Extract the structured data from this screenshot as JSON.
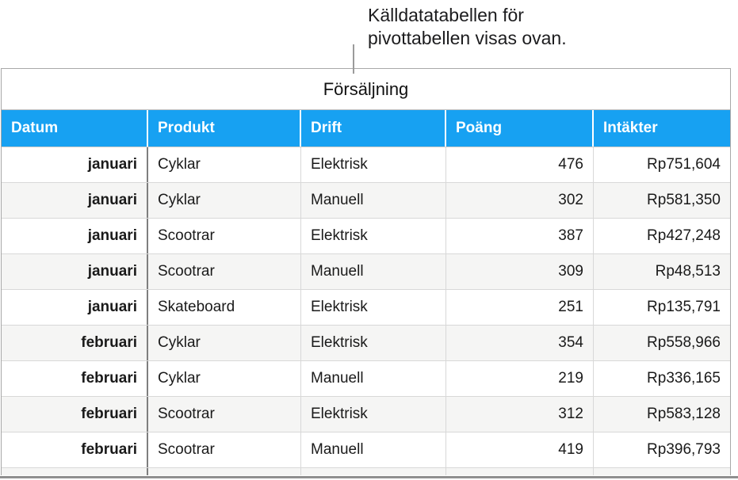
{
  "callout": {
    "line1": "Källdatatabellen för",
    "line2": "pivottabellen visas ovan."
  },
  "table": {
    "title": "Försäljning",
    "columns": [
      {
        "label": "Datum"
      },
      {
        "label": "Produkt"
      },
      {
        "label": "Drift"
      },
      {
        "label": "Poäng"
      },
      {
        "label": "Intäkter"
      }
    ],
    "rows": [
      [
        "januari",
        "Cyklar",
        "Elektrisk",
        "476",
        "Rp751,604"
      ],
      [
        "januari",
        "Cyklar",
        "Manuell",
        "302",
        "Rp581,350"
      ],
      [
        "januari",
        "Scootrar",
        "Elektrisk",
        "387",
        "Rp427,248"
      ],
      [
        "januari",
        "Scootrar",
        "Manuell",
        "309",
        "Rp48,513"
      ],
      [
        "januari",
        "Skateboard",
        "Elektrisk",
        "251",
        "Rp135,791"
      ],
      [
        "februari",
        "Cyklar",
        "Elektrisk",
        "354",
        "Rp558,966"
      ],
      [
        "februari",
        "Cyklar",
        "Manuell",
        "219",
        "Rp336,165"
      ],
      [
        "februari",
        "Scootrar",
        "Elektrisk",
        "312",
        "Rp583,128"
      ],
      [
        "februari",
        "Scootrar",
        "Manuell",
        "419",
        "Rp396,793"
      ]
    ],
    "colors": {
      "header_bg": "#17a1f2",
      "header_text": "#ffffff",
      "stripe_bg": "#f5f5f4",
      "row_border": "#d8d8d8",
      "datum_divider": "#7e7e7e",
      "outer_border": "#a8a8a8"
    }
  }
}
